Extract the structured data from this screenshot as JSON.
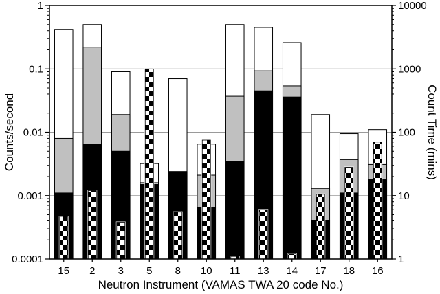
{
  "chart_data": {
    "type": "bar",
    "xlabel": "Neutron Instrument (VAMAS TWA 20 code No.)",
    "ylabel": "Counts/second",
    "y2label": "Count Time (mins)",
    "yscale": "log",
    "ylim": [
      0.0001,
      1
    ],
    "y2scale": "log",
    "y2lim": [
      1,
      10000
    ],
    "yticks": [
      "1",
      "0.1",
      "0.01",
      "0.001",
      "0.0001"
    ],
    "y2ticks": [
      "10000",
      "1000",
      "100",
      "10",
      "1"
    ],
    "grid": true,
    "categories": [
      "15",
      "2",
      "3",
      "5",
      "8",
      "10",
      "11",
      "13",
      "14",
      "17",
      "18",
      "16"
    ],
    "series": [
      {
        "fill": "white",
        "color": "#ffffff",
        "values": [
          0.42,
          0.5,
          0.09,
          0.0032,
          0.07,
          0.0065,
          0.5,
          0.45,
          0.26,
          0.019,
          0.0095,
          0.011
        ]
      },
      {
        "fill": "gray",
        "color": "#c0c0c0",
        "values": [
          0.008,
          0.22,
          0.019,
          0.0016,
          0.0024,
          0.0021,
          0.037,
          0.093,
          0.054,
          0.0013,
          0.0037,
          0.0031
        ]
      },
      {
        "fill": "black",
        "color": "#000000",
        "values": [
          0.0011,
          0.0065,
          0.005,
          0.0015,
          0.0023,
          0.00065,
          0.0035,
          0.045,
          0.036,
          0.0004,
          0.0011,
          0.0018
        ]
      },
      {
        "fill": "checkered",
        "axis": "right",
        "values": [
          4.7,
          12,
          3.8,
          1000,
          5.5,
          75,
          1.1,
          6,
          1.2,
          10.5,
          28,
          70
        ]
      }
    ]
  }
}
